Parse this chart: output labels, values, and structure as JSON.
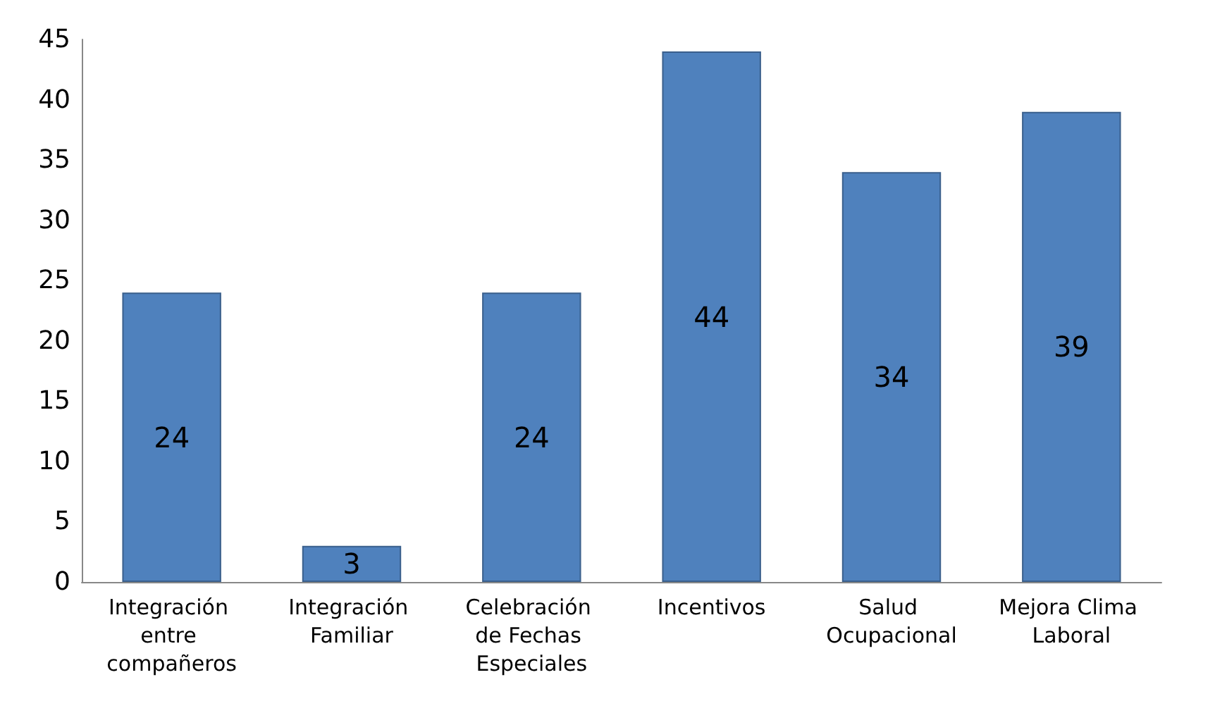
{
  "chart_data": {
    "type": "bar",
    "categories": [
      "Integración entre compañeros",
      "Integración Familiar",
      "Celebración de Fechas Especiales",
      "Incentivos",
      "Salud Ocupacional",
      "Mejora Clima Laboral"
    ],
    "values": [
      24,
      3,
      24,
      44,
      34,
      39
    ],
    "color": "#4f81bd",
    "ylim": [
      0,
      45
    ],
    "yticks": [
      0,
      5,
      10,
      15,
      20,
      25,
      30,
      35,
      40,
      45
    ],
    "data_labels": true
  }
}
